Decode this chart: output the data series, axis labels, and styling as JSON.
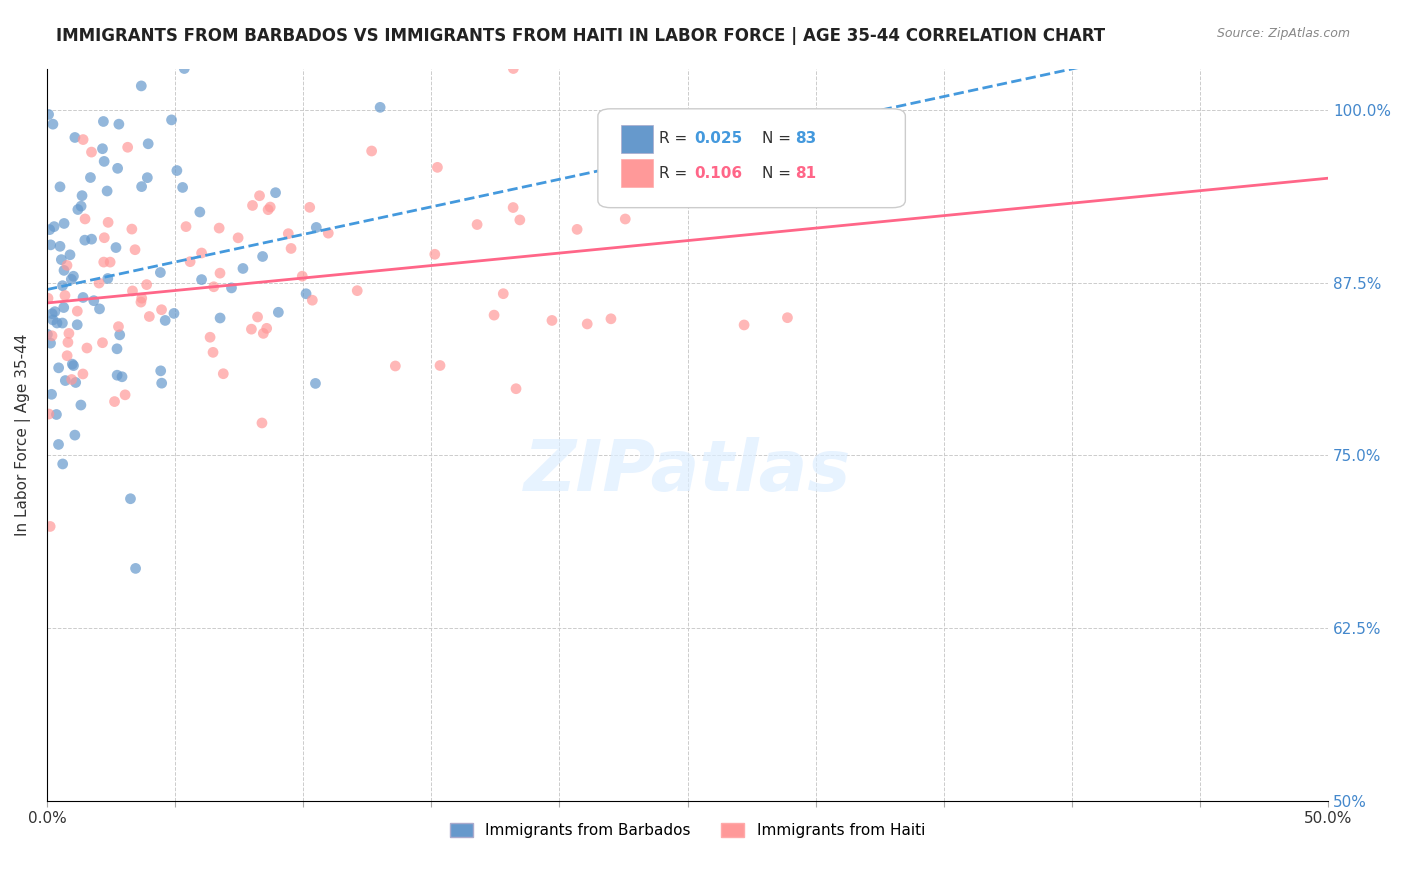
{
  "title": "IMMIGRANTS FROM BARBADOS VS IMMIGRANTS FROM HAITI IN LABOR FORCE | AGE 35-44 CORRELATION CHART",
  "source": "Source: ZipAtlas.com",
  "xlabel": "",
  "ylabel": "In Labor Force | Age 35-44",
  "xlim": [
    0.0,
    0.5
  ],
  "ylim": [
    0.5,
    1.03
  ],
  "xticks": [
    0.0,
    0.05,
    0.1,
    0.15,
    0.2,
    0.25,
    0.3,
    0.35,
    0.4,
    0.45,
    0.5
  ],
  "xtick_labels": [
    "0.0%",
    "",
    "",
    "",
    "",
    "",
    "",
    "",
    "",
    "",
    "50.0%"
  ],
  "yticks": [
    0.5,
    0.625,
    0.75,
    0.875,
    1.0
  ],
  "ytick_labels_right": [
    "50%",
    "62.5%",
    "75.0%",
    "87.5%",
    "100.0%"
  ],
  "legend_r_barbados": "R = 0.025",
  "legend_n_barbados": "N = 83",
  "legend_r_haiti": "R = 0.106",
  "legend_n_haiti": "N = 81",
  "color_barbados": "#6699CC",
  "color_haiti": "#FF9999",
  "color_trend_barbados": "#4499DD",
  "color_trend_haiti": "#FF6688",
  "watermark": "ZIPatlas",
  "r_barbados": 0.025,
  "n_barbados": 83,
  "r_haiti": 0.106,
  "n_haiti": 81,
  "random_seed": 42
}
